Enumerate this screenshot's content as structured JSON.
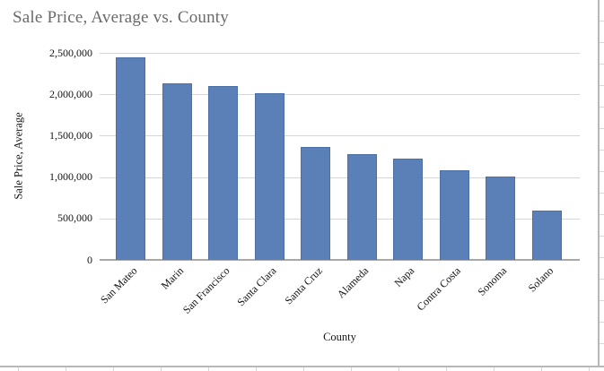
{
  "chart_data": {
    "type": "bar",
    "title": "Sale Price, Average vs. County",
    "xlabel": "County",
    "ylabel": "Sale Price, Average",
    "categories": [
      "San Mateo",
      "Marin",
      "San Francisco",
      "Santa Clara",
      "Santa Cruz",
      "Alameda",
      "Napa",
      "Contra Costa",
      "Sonoma",
      "Solano"
    ],
    "values": [
      2450000,
      2130000,
      2100000,
      2010000,
      1360000,
      1280000,
      1220000,
      1080000,
      1010000,
      600000
    ],
    "ylim": [
      0,
      2500000
    ],
    "yticks": [
      0,
      500000,
      1000000,
      1500000,
      2000000,
      2500000
    ],
    "ytick_labels": [
      "0",
      "500,000",
      "1,000,000",
      "1,500,000",
      "2,000,000",
      "2,500,000"
    ],
    "grid": true,
    "legend_position": "none",
    "bar_color": "#5b80b8",
    "bar_border_color": "#4c70a4",
    "title_color": "#6a6a6a",
    "gridline_color": "#d6d6d6",
    "axis_line_color": "#a9a9a9"
  }
}
